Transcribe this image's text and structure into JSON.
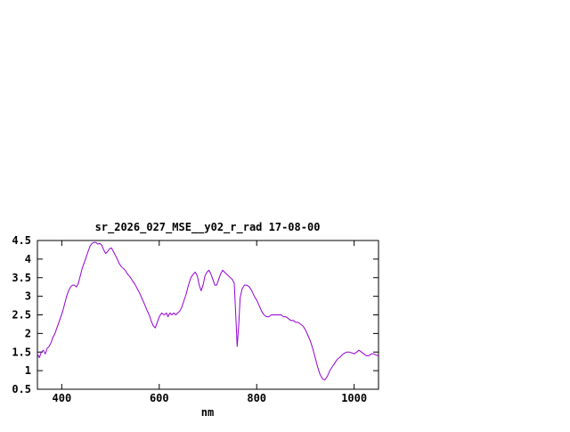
{
  "canvas": {
    "background": "#ffffff"
  },
  "chart_data": {
    "type": "line",
    "title": "sr_2026_027_MSE__y02_r_rad 17-08-00",
    "xlabel": "nm",
    "ylabel": "",
    "xlim": [
      350,
      1050
    ],
    "ylim": [
      0.5,
      4.5
    ],
    "x_ticks": [
      400,
      600,
      800,
      1000
    ],
    "y_ticks": [
      0.5,
      1,
      1.5,
      2,
      2.5,
      3,
      3.5,
      4,
      4.5
    ],
    "grid": false,
    "legend": "none",
    "axis_color": "#000000",
    "series": [
      {
        "name": "sr_2026_027_MSE__y02_r_rad",
        "color": "#9400d3",
        "x": [
          350,
          354,
          358,
          362,
          366,
          370,
          374,
          378,
          382,
          386,
          390,
          394,
          398,
          402,
          406,
          410,
          414,
          418,
          422,
          426,
          430,
          434,
          438,
          442,
          446,
          450,
          454,
          458,
          462,
          466,
          470,
          474,
          478,
          482,
          486,
          490,
          494,
          498,
          502,
          506,
          510,
          514,
          518,
          522,
          526,
          530,
          535,
          540,
          545,
          550,
          555,
          560,
          565,
          570,
          575,
          580,
          584,
          588,
          592,
          596,
          600,
          605,
          610,
          615,
          618,
          622,
          626,
          630,
          634,
          638,
          642,
          646,
          650,
          655,
          660,
          665,
          670,
          674,
          678,
          682,
          686,
          690,
          694,
          698,
          702,
          706,
          710,
          714,
          718,
          722,
          726,
          730,
          734,
          738,
          742,
          746,
          750,
          754,
          757,
          760,
          763,
          766,
          770,
          775,
          780,
          785,
          790,
          795,
          800,
          805,
          810,
          815,
          820,
          825,
          830,
          835,
          840,
          845,
          850,
          855,
          860,
          865,
          870,
          875,
          880,
          885,
          890,
          895,
          900,
          905,
          910,
          915,
          920,
          925,
          930,
          935,
          940,
          945,
          950,
          955,
          960,
          965,
          970,
          975,
          980,
          985,
          990,
          995,
          1000,
          1005,
          1010,
          1015,
          1020,
          1025,
          1030,
          1035,
          1040,
          1045,
          1050
        ],
        "y": [
          1.45,
          1.35,
          1.5,
          1.55,
          1.45,
          1.6,
          1.65,
          1.75,
          1.9,
          2.0,
          2.15,
          2.3,
          2.45,
          2.6,
          2.8,
          3.0,
          3.15,
          3.25,
          3.3,
          3.3,
          3.25,
          3.35,
          3.55,
          3.75,
          3.9,
          4.05,
          4.2,
          4.35,
          4.42,
          4.45,
          4.45,
          4.4,
          4.42,
          4.38,
          4.25,
          4.15,
          4.2,
          4.28,
          4.3,
          4.2,
          4.1,
          4.0,
          3.88,
          3.8,
          3.75,
          3.7,
          3.6,
          3.52,
          3.42,
          3.33,
          3.2,
          3.08,
          2.93,
          2.78,
          2.62,
          2.48,
          2.32,
          2.2,
          2.15,
          2.3,
          2.45,
          2.55,
          2.5,
          2.55,
          2.45,
          2.55,
          2.5,
          2.55,
          2.5,
          2.55,
          2.6,
          2.7,
          2.85,
          3.05,
          3.3,
          3.5,
          3.6,
          3.65,
          3.55,
          3.3,
          3.15,
          3.3,
          3.55,
          3.65,
          3.7,
          3.6,
          3.45,
          3.3,
          3.3,
          3.45,
          3.6,
          3.7,
          3.65,
          3.6,
          3.55,
          3.5,
          3.45,
          3.35,
          2.5,
          1.65,
          2.2,
          2.95,
          3.2,
          3.3,
          3.3,
          3.25,
          3.15,
          3.0,
          2.9,
          2.75,
          2.6,
          2.5,
          2.45,
          2.45,
          2.5,
          2.5,
          2.5,
          2.5,
          2.5,
          2.45,
          2.45,
          2.4,
          2.35,
          2.35,
          2.3,
          2.3,
          2.25,
          2.2,
          2.1,
          1.95,
          1.8,
          1.6,
          1.35,
          1.1,
          0.9,
          0.78,
          0.75,
          0.85,
          1.0,
          1.1,
          1.2,
          1.3,
          1.35,
          1.42,
          1.47,
          1.5,
          1.5,
          1.48,
          1.45,
          1.5,
          1.55,
          1.5,
          1.45,
          1.4,
          1.4,
          1.45,
          1.45,
          1.42,
          1.4
        ]
      }
    ]
  }
}
